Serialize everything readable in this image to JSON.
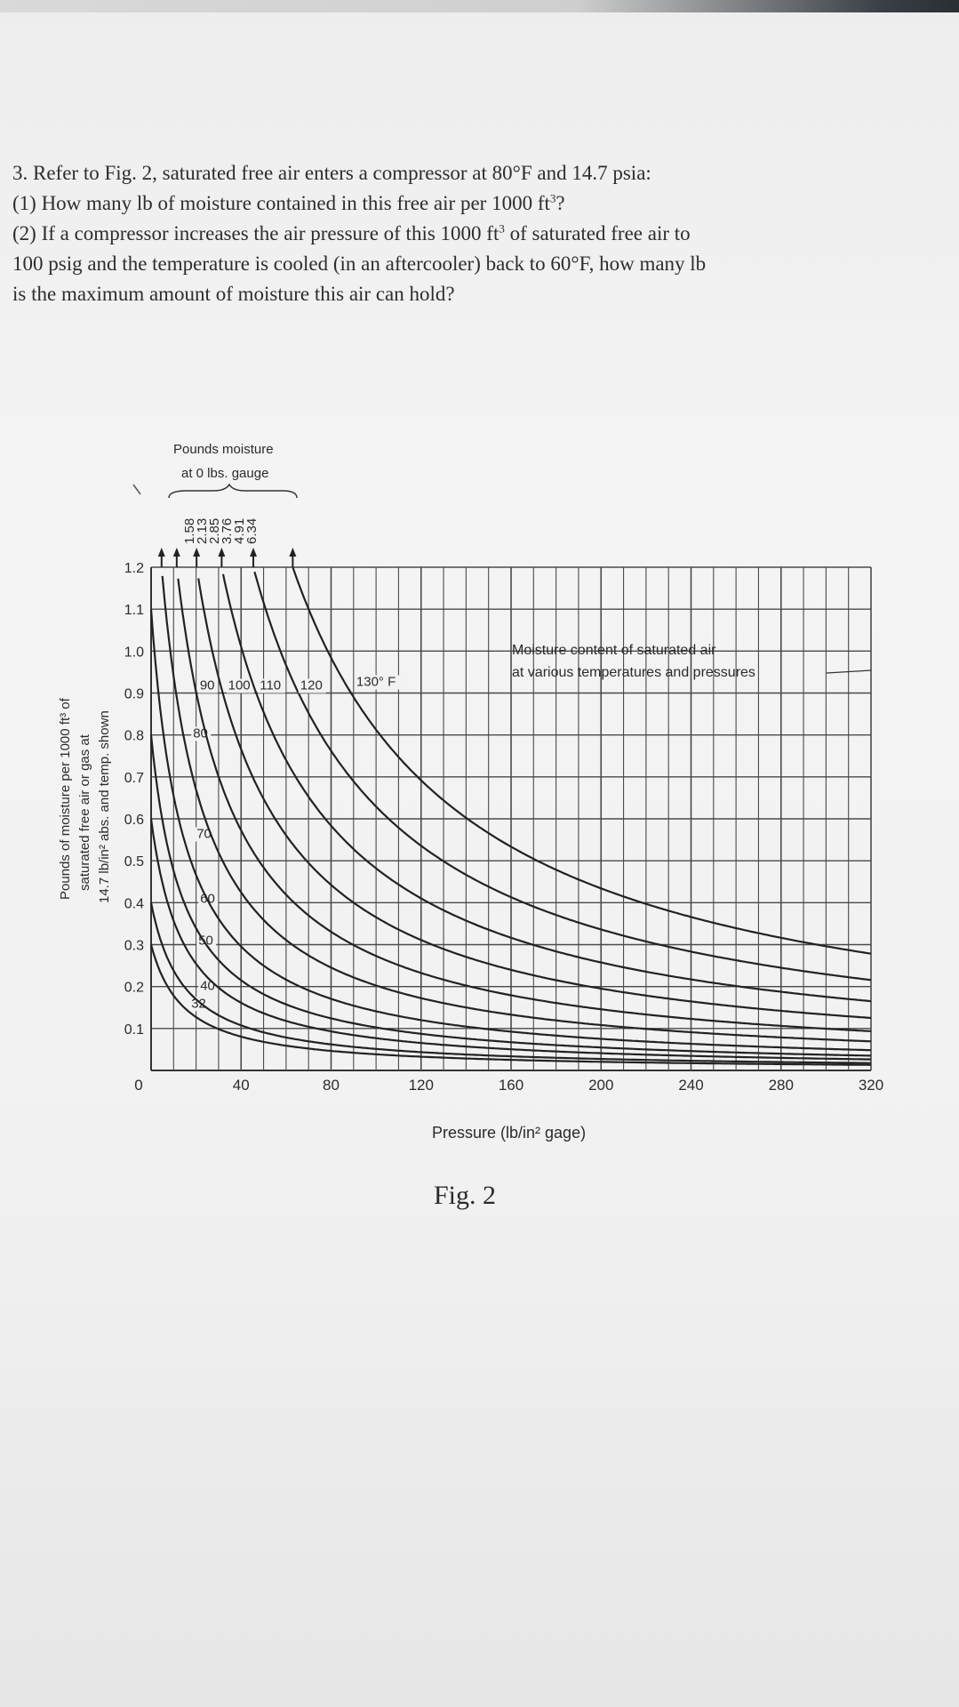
{
  "question": {
    "line1": "3. Refer to Fig. 2, saturated free air enters a compressor at 80°F and 14.7 psia:",
    "line2a": "(1) How many lb of moisture contained in this free air per 1000 ft",
    "line2sup": "3",
    "line2b": "?",
    "line3a": "(2) If a compressor increases the air pressure of this 1000 ft",
    "line3sup": "3",
    "line3b": " of saturated free air to",
    "line4": "100 psig and the temperature is cooled (in an aftercooler) back to 60°F, how many lb",
    "line5": "is the maximum amount of moisture this air can hold?"
  },
  "figure": {
    "caption": "Fig. 2"
  },
  "chart_data": {
    "type": "line",
    "top_label_line1": "Pounds moisture",
    "top_label_line2": "at 0 lbs. gauge",
    "top_values": [
      "1.58",
      "2.13",
      "2.85",
      "3.76",
      "4.91",
      "6.34"
    ],
    "box_title_line1": "Moisture content of saturated air",
    "box_title_line2": "at various temperatures and pressures",
    "xlabel": "Pressure (lb/in² gage)",
    "ylabel_line1": "Pounds of moisture per 1000 ft³ of",
    "ylabel_line2": "saturated free air or gas at",
    "ylabel_line3": "14.7 lb/in² abs. and temp. shown",
    "x_ticks": [
      0,
      40,
      80,
      120,
      160,
      200,
      240,
      280,
      320
    ],
    "x_tick_labels": [
      "0",
      "40",
      "80",
      "120",
      "160",
      "200",
      "240",
      "280",
      "320"
    ],
    "y_ticks": [
      0.1,
      0.2,
      0.3,
      0.4,
      0.5,
      0.6,
      0.7,
      0.8,
      0.9,
      1.0,
      1.1,
      1.2
    ],
    "y_tick_labels": [
      "0.1",
      "0.2",
      "0.3",
      "0.4",
      "0.5",
      "0.6",
      "0.7",
      "0.8",
      "0.9",
      "1.0",
      "1.1",
      "1.2"
    ],
    "xlim": [
      0,
      320
    ],
    "ylim": [
      0,
      1.2
    ],
    "grid": true,
    "series": [
      {
        "name": "32",
        "label": "32",
        "value_at_0_gauge": 0.3
      },
      {
        "name": "40",
        "label": "40",
        "value_at_0_gauge": 0.4
      },
      {
        "name": "50",
        "label": "50",
        "value_at_0_gauge": 0.6
      },
      {
        "name": "60",
        "label": "60",
        "value_at_0_gauge": 0.8
      },
      {
        "name": "70",
        "label": "70",
        "value_at_0_gauge": 1.1
      },
      {
        "name": "80",
        "label": "80",
        "value_at_0_gauge": 1.58
      },
      {
        "name": "90",
        "label": "90",
        "value_at_0_gauge": 2.13
      },
      {
        "name": "100",
        "label": "100",
        "value_at_0_gauge": 2.85
      },
      {
        "name": "110",
        "label": "110",
        "value_at_0_gauge": 3.76
      },
      {
        "name": "120",
        "label": "120",
        "value_at_0_gauge": 4.91
      },
      {
        "name": "130",
        "label": "130° F",
        "value_at_0_gauge": 6.34
      }
    ]
  }
}
